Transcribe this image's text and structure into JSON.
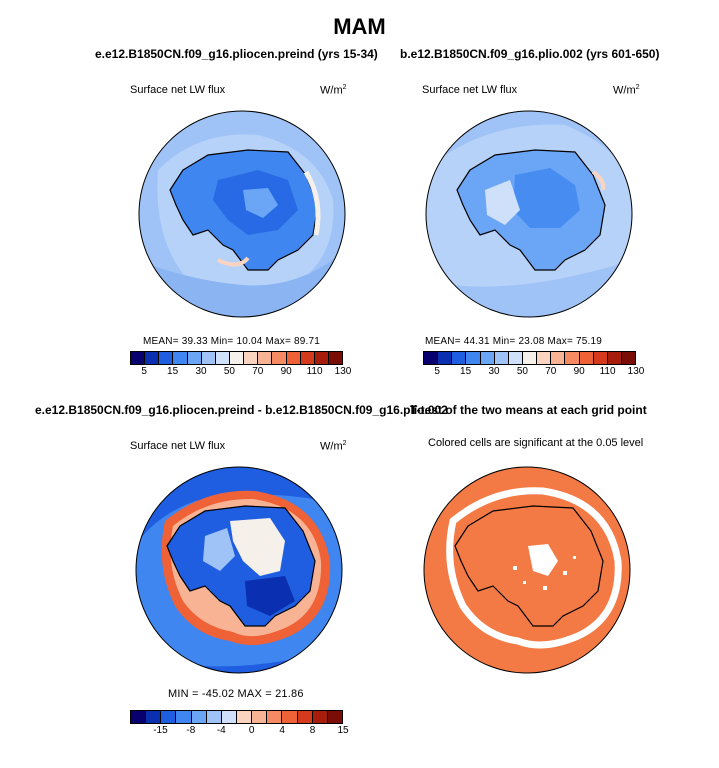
{
  "figure": {
    "title": "MAM"
  },
  "panels": {
    "p1": {
      "case": "e.e12.B1850CN.f09_g16.pliocen.preind (yrs 15-34)",
      "field": "Surface net LW flux",
      "units": "W/m",
      "units_sup": "2",
      "stats": "MEAN=   39.33   Min=   10.04   Max=   89.71"
    },
    "p2": {
      "case": "b.e12.B1850CN.f09_g16.plio.002 (yrs 601-650)",
      "field": "Surface net LW flux",
      "units": "W/m",
      "units_sup": "2",
      "stats": "MEAN=   44.31   Min=   23.08   Max=   75.19"
    },
    "p3": {
      "case": "e.e12.B1850CN.f09_g16.pliocen.preind - b.e12.B1850CN.f09_g16.plio.002",
      "field": "Surface net LW flux",
      "units": "W/m",
      "units_sup": "2",
      "stats": "MIN = -45.02  MAX =  21.86"
    },
    "p4": {
      "case": "T-test of the two means at each grid point",
      "note": "Colored cells are significant at the 0.05 level"
    }
  },
  "colorbars": {
    "abs": {
      "ticks": [
        "5",
        "15",
        "30",
        "50",
        "70",
        "90",
        "110",
        "130"
      ],
      "colors": [
        "#08006e",
        "#0a2fb0",
        "#1f5ee0",
        "#3f86f0",
        "#6aa6f5",
        "#9fc3f7",
        "#cfe0fa",
        "#f6f0ea",
        "#fbd4c0",
        "#f8b294",
        "#f58a63",
        "#ef6136",
        "#d63a1c",
        "#a81c0c",
        "#7a0d06"
      ]
    },
    "diff": {
      "ticks": [
        "-15",
        "-8",
        "-4",
        "0",
        "4",
        "8",
        "15"
      ],
      "colors": [
        "#08006e",
        "#0a2fb0",
        "#1f5ee0",
        "#3f86f0",
        "#6aa6f5",
        "#9fc3f7",
        "#cfe0fa",
        "#fbd4c0",
        "#f8b294",
        "#f58a63",
        "#ef6136",
        "#d63a1c",
        "#a81c0c",
        "#7a0d06"
      ]
    }
  },
  "map_colors": {
    "ocean_p1": "#9fc3f7",
    "ocean_p2": "#b7d2f8",
    "ice_p1": "#3f86f0",
    "ice_p2": "#6aa6f5",
    "ttest": "#f47a45"
  }
}
